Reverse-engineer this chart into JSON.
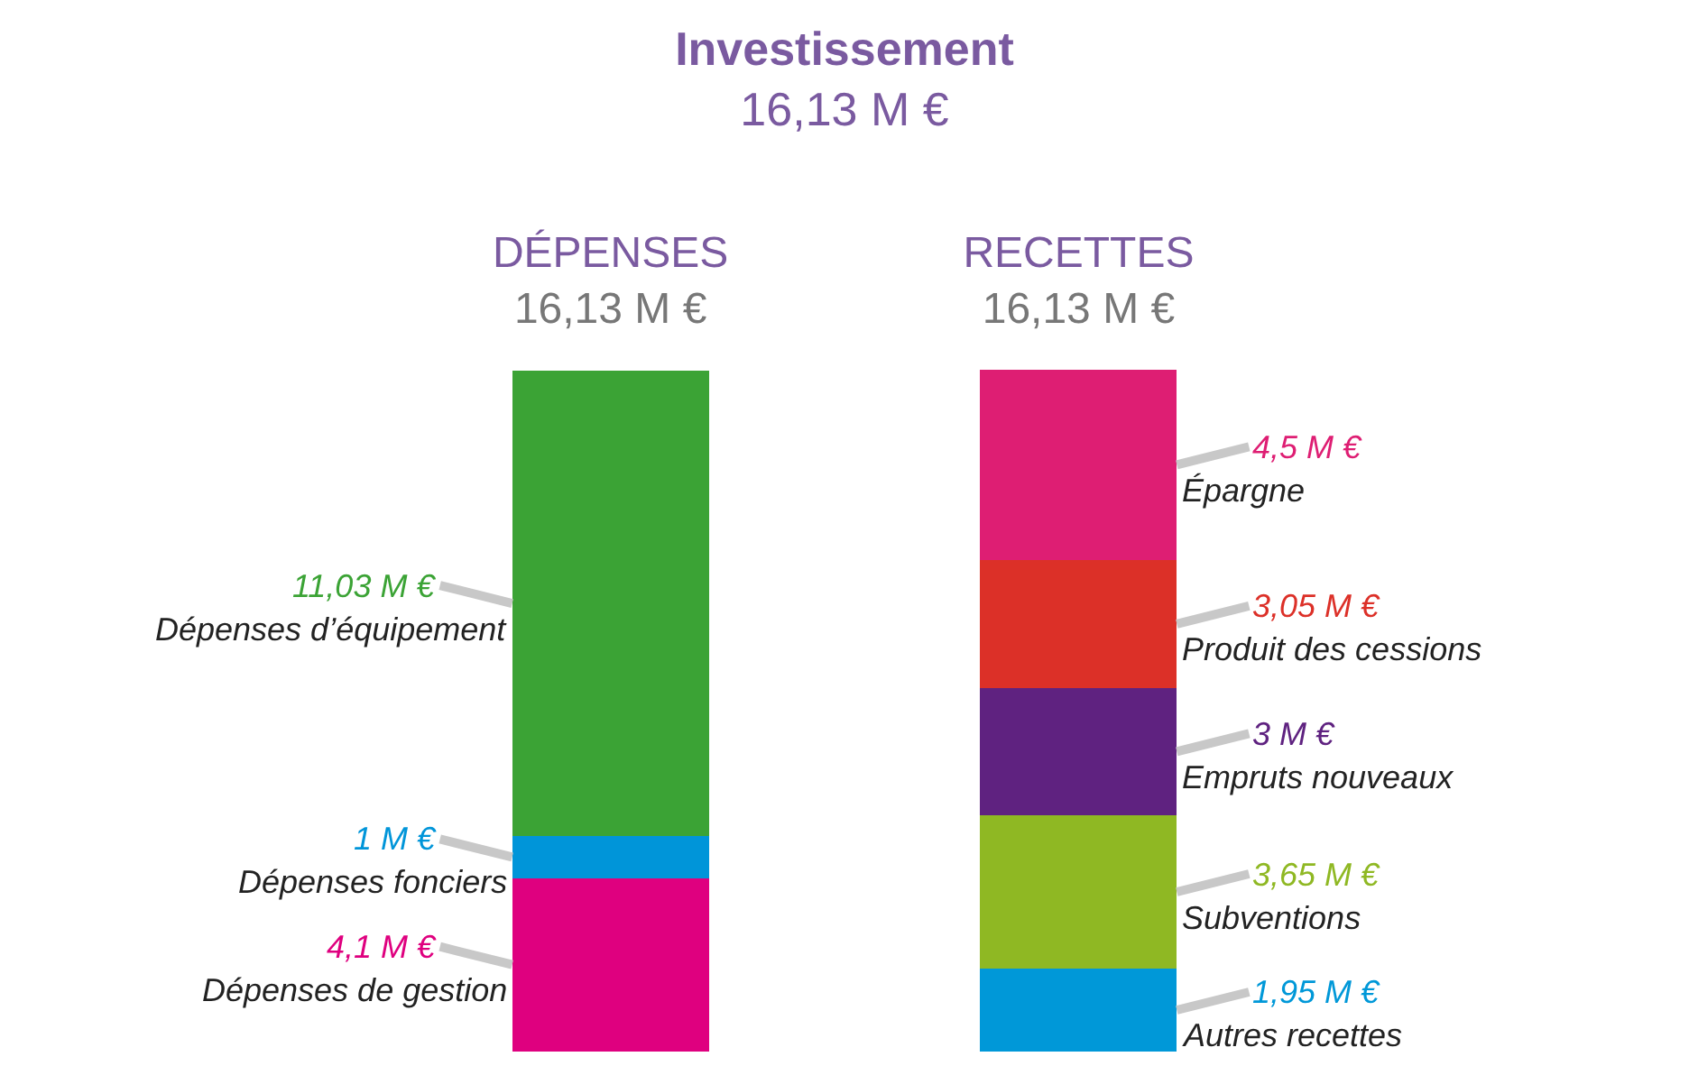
{
  "chart_data": {
    "type": "bar",
    "stacked": true,
    "title": "Investissement",
    "subtitle": "16,13 M €",
    "categories": [
      "DÉPENSES",
      "RECETTES"
    ],
    "totals": [
      "16,13 M €",
      "16,13 M €"
    ],
    "legend": false,
    "tick_labels": "x",
    "series": [
      {
        "name": "Dépenses de gestion",
        "color": "#df007f",
        "values": [
          4.1,
          null
        ],
        "value_labels": [
          "4,1 M €",
          null
        ]
      },
      {
        "name": "Dépenses fonciers",
        "color": "#0095d9",
        "values": [
          1,
          null
        ],
        "value_labels": [
          "1 M €",
          null
        ]
      },
      {
        "name": "Dépenses d’équipement",
        "color": "#3ba335",
        "values": [
          11.03,
          null
        ],
        "value_labels": [
          "11,03 M €",
          null
        ]
      },
      {
        "name": "Autres recettes",
        "color": "#0098d8",
        "values": [
          null,
          1.95
        ],
        "value_labels": [
          null,
          "1,95 M €"
        ]
      },
      {
        "name": "Subventions",
        "color": "#8fb823",
        "values": [
          null,
          3.65
        ],
        "value_labels": [
          null,
          "3,65 M €"
        ]
      },
      {
        "name": "Empruts nouveaux",
        "color": "#5f2280",
        "values": [
          null,
          3
        ],
        "value_labels": [
          null,
          "3 M €"
        ]
      },
      {
        "name": "Produit des cessions",
        "color": "#dc3028",
        "values": [
          null,
          3.05
        ],
        "value_labels": [
          null,
          "3,05 M €"
        ]
      },
      {
        "name": "Épargne",
        "color": "#de1e73",
        "values": [
          null,
          4.5
        ],
        "value_labels": [
          null,
          "4,5 M €"
        ]
      }
    ]
  }
}
